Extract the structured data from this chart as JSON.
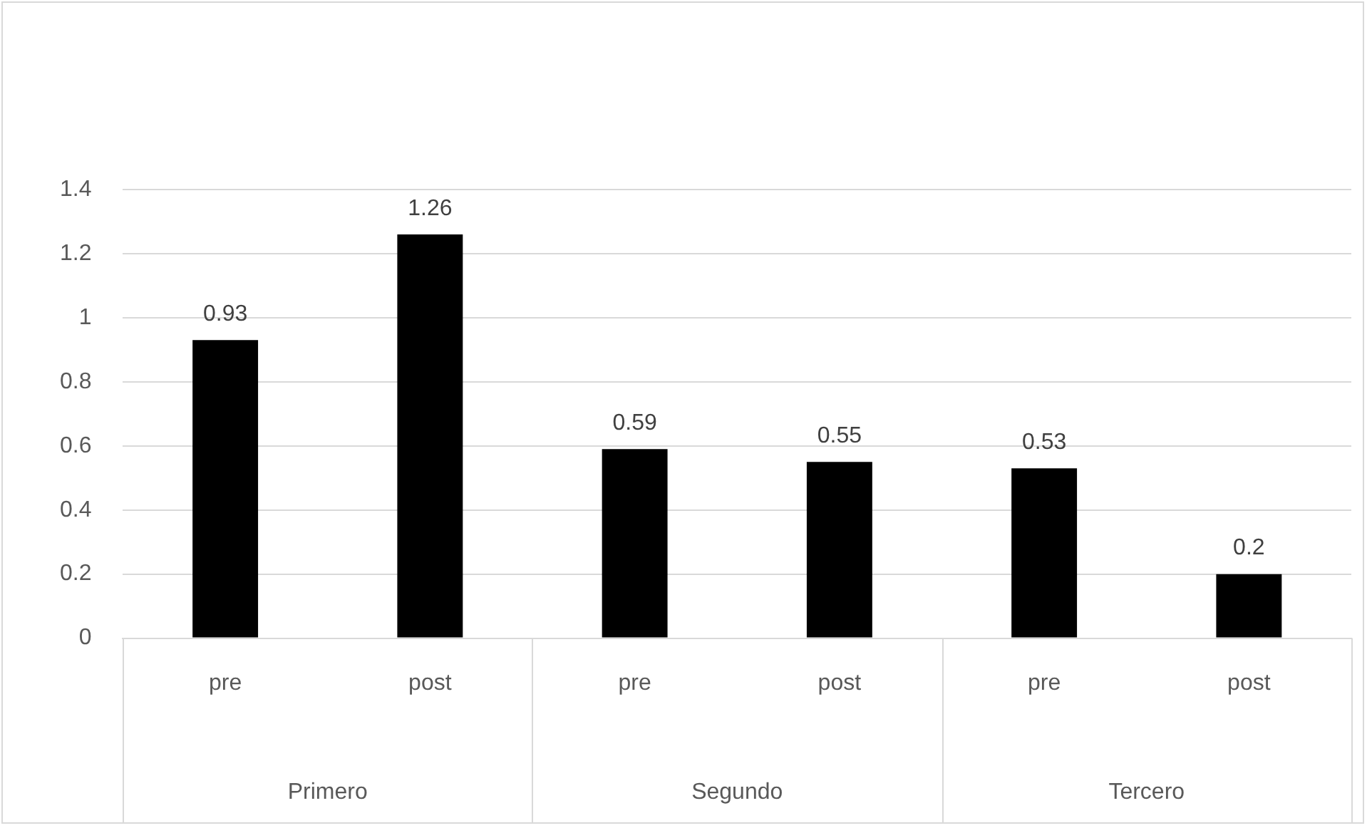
{
  "chart_data": {
    "type": "bar",
    "categories": [
      "pre",
      "post",
      "pre",
      "post",
      "pre",
      "post"
    ],
    "values": [
      0.93,
      1.26,
      0.59,
      0.55,
      0.53,
      0.2
    ],
    "color": "#000000",
    "ylim": [
      0,
      1.4
    ],
    "yticks": [
      0,
      0.2,
      0.4,
      0.6,
      0.8,
      1,
      1.2,
      1.4
    ],
    "grid": "y",
    "data_labels": true,
    "legend": false,
    "annotations": [
      "Primero",
      "Segundo",
      "Tercero"
    ]
  }
}
